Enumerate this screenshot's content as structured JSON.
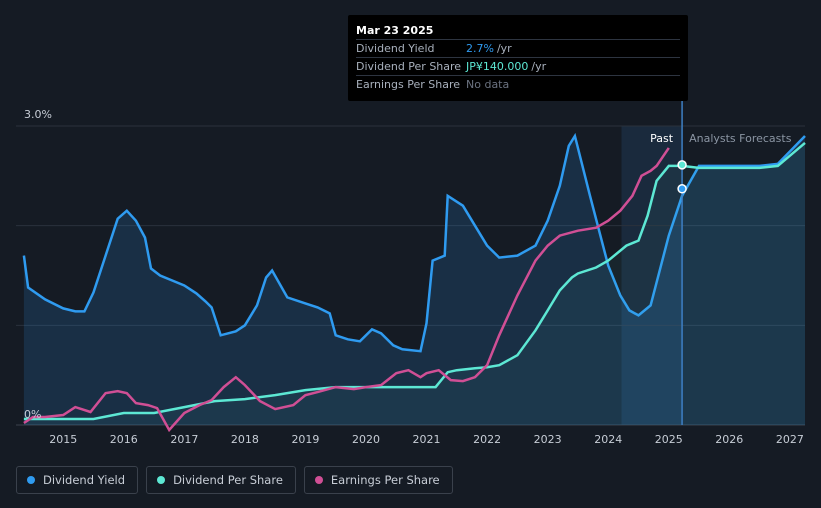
{
  "tooltip": {
    "date": "Mar 23 2025",
    "rows": [
      {
        "label": "Dividend Yield",
        "value": "2.7%",
        "unit": "/yr"
      },
      {
        "label": "Dividend Per Share",
        "value": "JP¥140.000",
        "unit": "/yr"
      },
      {
        "label": "Earnings Per Share",
        "value": "No data",
        "unit": ""
      }
    ]
  },
  "labels": {
    "past": "Past",
    "forecast": "Analysts Forecasts"
  },
  "legend": [
    "Dividend Yield",
    "Dividend Per Share",
    "Earnings Per Share"
  ],
  "colors": {
    "background": "#151b24",
    "past_region": "#1a2a3d",
    "yield": "#2f9bf0",
    "dps": "#5de8d4",
    "eps": "#d04f95"
  },
  "chart_data": {
    "type": "line",
    "x_ticks": [
      "2015",
      "2016",
      "2017",
      "2018",
      "2019",
      "2020",
      "2021",
      "2022",
      "2023",
      "2024",
      "2025",
      "2026",
      "2027"
    ],
    "y_ticks": [
      "0%",
      "3.0%"
    ],
    "ylim": [
      0,
      3.0
    ],
    "xlim": [
      2014.22,
      2027.25
    ],
    "forecast_start": 2025.22,
    "past_highlight_start": 2024.22,
    "grid": true,
    "legend_position": "bottom-left",
    "series": [
      {
        "name": "Dividend Yield",
        "x": [
          2014.35,
          2014.42,
          2014.7,
          2015.0,
          2015.2,
          2015.35,
          2015.5,
          2015.7,
          2015.9,
          2016.05,
          2016.2,
          2016.35,
          2016.45,
          2016.6,
          2016.8,
          2017.0,
          2017.2,
          2017.35,
          2017.45,
          2017.6,
          2017.85,
          2018.0,
          2018.2,
          2018.35,
          2018.45,
          2018.7,
          2019.0,
          2019.2,
          2019.4,
          2019.5,
          2019.7,
          2019.9,
          2020.1,
          2020.25,
          2020.45,
          2020.6,
          2020.9,
          2021.0,
          2021.1,
          2021.3,
          2021.35,
          2021.6,
          2021.8,
          2022.0,
          2022.2,
          2022.5,
          2022.8,
          2023.0,
          2023.2,
          2023.35,
          2023.45,
          2023.7,
          2024.0,
          2024.2,
          2024.35,
          2024.5,
          2024.7,
          2025.0,
          2025.22,
          2025.5,
          2026.0,
          2026.5,
          2026.8,
          2027.25
        ],
        "y": [
          1.7,
          1.38,
          1.26,
          1.17,
          1.14,
          1.14,
          1.33,
          1.7,
          2.07,
          2.15,
          2.05,
          1.88,
          1.57,
          1.5,
          1.45,
          1.4,
          1.32,
          1.24,
          1.18,
          0.9,
          0.94,
          1.0,
          1.2,
          1.48,
          1.55,
          1.28,
          1.22,
          1.18,
          1.12,
          0.9,
          0.86,
          0.84,
          0.96,
          0.92,
          0.8,
          0.76,
          0.74,
          1.02,
          1.65,
          1.7,
          2.3,
          2.2,
          2.0,
          1.8,
          1.68,
          1.7,
          1.8,
          2.05,
          2.4,
          2.8,
          2.9,
          2.3,
          1.6,
          1.3,
          1.15,
          1.1,
          1.2,
          1.9,
          2.3,
          2.6,
          2.6,
          2.6,
          2.62,
          2.9
        ]
      },
      {
        "name": "Dividend Per Share",
        "x": [
          2014.35,
          2015.0,
          2015.5,
          2016.0,
          2016.5,
          2017.0,
          2017.5,
          2018.0,
          2018.5,
          2019.0,
          2019.5,
          2020.0,
          2020.5,
          2020.9,
          2021.0,
          2021.15,
          2021.35,
          2021.5,
          2021.8,
          2022.0,
          2022.2,
          2022.5,
          2022.8,
          2023.0,
          2023.2,
          2023.4,
          2023.5,
          2023.8,
          2024.0,
          2024.3,
          2024.5,
          2024.65,
          2024.8,
          2025.0,
          2025.22,
          2025.5,
          2026.0,
          2026.5,
          2026.8,
          2027.25
        ],
        "y": [
          0.06,
          0.06,
          0.06,
          0.12,
          0.12,
          0.18,
          0.24,
          0.26,
          0.3,
          0.35,
          0.38,
          0.38,
          0.38,
          0.38,
          0.38,
          0.38,
          0.53,
          0.55,
          0.57,
          0.58,
          0.6,
          0.7,
          0.95,
          1.15,
          1.35,
          1.48,
          1.52,
          1.58,
          1.65,
          1.8,
          1.85,
          2.1,
          2.45,
          2.6,
          2.6,
          2.58,
          2.58,
          2.58,
          2.6,
          2.83
        ]
      },
      {
        "name": "Earnings Per Share",
        "x": [
          2014.35,
          2014.5,
          2014.7,
          2015.0,
          2015.2,
          2015.45,
          2015.7,
          2015.9,
          2016.05,
          2016.2,
          2016.4,
          2016.55,
          2016.75,
          2017.0,
          2017.25,
          2017.45,
          2017.65,
          2017.85,
          2018.0,
          2018.25,
          2018.5,
          2018.8,
          2019.0,
          2019.2,
          2019.5,
          2019.8,
          2020.0,
          2020.25,
          2020.5,
          2020.7,
          2020.9,
          2021.0,
          2021.2,
          2021.4,
          2021.6,
          2021.8,
          2022.0,
          2022.2,
          2022.5,
          2022.8,
          2023.0,
          2023.2,
          2023.5,
          2023.8,
          2024.0,
          2024.2,
          2024.4,
          2024.55,
          2024.7,
          2024.8,
          2025.0
        ],
        "y": [
          0.02,
          0.08,
          0.08,
          0.1,
          0.18,
          0.13,
          0.32,
          0.34,
          0.32,
          0.22,
          0.2,
          0.17,
          -0.05,
          0.12,
          0.2,
          0.25,
          0.38,
          0.48,
          0.4,
          0.24,
          0.16,
          0.2,
          0.3,
          0.33,
          0.38,
          0.36,
          0.38,
          0.4,
          0.52,
          0.55,
          0.48,
          0.52,
          0.55,
          0.45,
          0.44,
          0.48,
          0.6,
          0.9,
          1.3,
          1.65,
          1.8,
          1.9,
          1.95,
          1.98,
          2.05,
          2.15,
          2.3,
          2.5,
          2.55,
          2.6,
          2.78
        ]
      }
    ]
  }
}
